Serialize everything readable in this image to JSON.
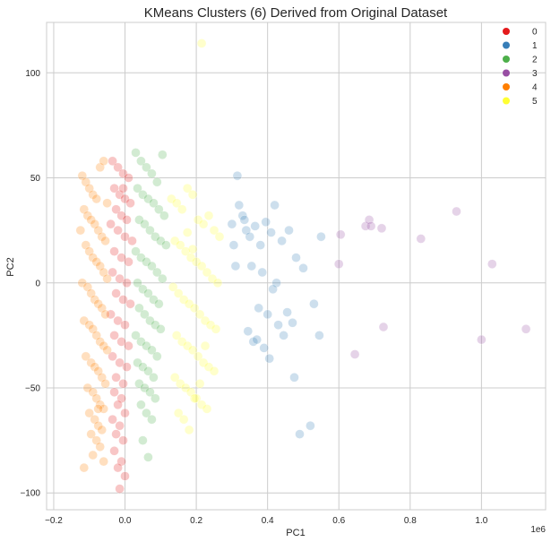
{
  "chart_data": {
    "type": "scatter",
    "title": "KMeans Clusters (6) Derived from Original Dataset",
    "xlabel": "PC1",
    "ylabel": "PC2",
    "x_scale_label": "1e6",
    "xlim": [
      -220000,
      1180000
    ],
    "ylim": [
      -108,
      124
    ],
    "x_ticks": [
      -200000,
      0,
      200000,
      400000,
      600000,
      800000,
      1000000
    ],
    "x_tick_labels": [
      "−0.2",
      "0.0",
      "0.2",
      "0.4",
      "0.6",
      "0.8",
      "1.0"
    ],
    "y_ticks": [
      -100,
      -50,
      0,
      50,
      100
    ],
    "y_tick_labels": [
      "−100",
      "−50",
      "0",
      "50",
      "100"
    ],
    "grid": true,
    "legend_position": "top-right",
    "series": [
      {
        "name": "0",
        "color": "#e41a1c",
        "x": [
          -35000,
          -20000,
          -5000,
          10000,
          -30000,
          -15000,
          0,
          15000,
          -25000,
          -10000,
          5000,
          -40000,
          -20000,
          0,
          20000,
          -30000,
          -10000,
          10000,
          -35000,
          -15000,
          5000,
          -25000,
          -5000,
          15000,
          -40000,
          -20000,
          0,
          -30000,
          -10000,
          10000,
          -35000,
          -15000,
          5000,
          -25000,
          -5000,
          -30000,
          -10000,
          -20000,
          0,
          -35000,
          -15000,
          -25000,
          -5000,
          -30000,
          -10000,
          -20000,
          0,
          -15000,
          -5000
        ],
        "y": [
          58,
          55,
          52,
          50,
          45,
          42,
          40,
          38,
          35,
          32,
          30,
          28,
          25,
          22,
          20,
          15,
          12,
          10,
          5,
          2,
          0,
          -5,
          -8,
          -10,
          -15,
          -18,
          -20,
          -25,
          -28,
          -30,
          -35,
          -38,
          -40,
          -45,
          -48,
          -52,
          -55,
          -58,
          -62,
          -65,
          -68,
          -72,
          -75,
          -80,
          -85,
          -88,
          -92,
          -98,
          45
        ]
      },
      {
        "name": "1",
        "color": "#377eb8",
        "x": [
          315000,
          320000,
          330000,
          340000,
          350000,
          365000,
          380000,
          395000,
          410000,
          420000,
          440000,
          460000,
          480000,
          500000,
          520000,
          550000,
          300000,
          310000,
          345000,
          360000,
          375000,
          390000,
          405000,
          425000,
          445000,
          470000,
          490000,
          530000,
          545000,
          305000,
          335000,
          355000,
          370000,
          385000,
          400000,
          415000,
          430000,
          455000,
          475000
        ],
        "y": [
          51,
          37,
          32,
          25,
          22,
          27,
          18,
          29,
          24,
          37,
          20,
          25,
          12,
          7,
          -68,
          22,
          28,
          8,
          -23,
          -28,
          -12,
          -31,
          -36,
          0,
          -25,
          -19,
          -72,
          -10,
          -25,
          18,
          30,
          8,
          -27,
          5,
          -15,
          -3,
          -20,
          -14,
          -45
        ]
      },
      {
        "name": "2",
        "color": "#4daf4a",
        "x": [
          30000,
          45000,
          60000,
          75000,
          90000,
          105000,
          35000,
          50000,
          65000,
          80000,
          95000,
          110000,
          40000,
          55000,
          70000,
          85000,
          100000,
          115000,
          30000,
          45000,
          60000,
          75000,
          90000,
          105000,
          35000,
          50000,
          65000,
          80000,
          95000,
          40000,
          55000,
          70000,
          85000,
          100000,
          30000,
          45000,
          60000,
          75000,
          90000,
          35000,
          50000,
          65000,
          80000,
          40000,
          55000,
          70000,
          85000,
          45000,
          60000,
          75000,
          50000,
          65000
        ],
        "y": [
          62,
          58,
          55,
          52,
          48,
          61,
          45,
          42,
          40,
          38,
          35,
          32,
          30,
          28,
          25,
          22,
          20,
          18,
          15,
          12,
          10,
          8,
          5,
          2,
          0,
          -3,
          -5,
          -8,
          -10,
          -12,
          -15,
          -18,
          -20,
          -22,
          -25,
          -28,
          -30,
          -32,
          -35,
          -38,
          -40,
          -42,
          -45,
          -48,
          -50,
          -52,
          -55,
          -58,
          -62,
          -65,
          -75,
          -83
        ]
      },
      {
        "name": "3",
        "color": "#984ea3",
        "x": [
          605000,
          675000,
          685000,
          690000,
          720000,
          830000,
          930000,
          1030000,
          600000,
          645000,
          725000,
          1000000,
          1125000
        ],
        "y": [
          23,
          27,
          30,
          27,
          26,
          21,
          34,
          9,
          9,
          -34,
          -21,
          -27,
          -22
        ]
      },
      {
        "name": "4",
        "color": "#ff7f00",
        "x": [
          -120000,
          -110000,
          -100000,
          -90000,
          -80000,
          -70000,
          -60000,
          -50000,
          -115000,
          -105000,
          -95000,
          -85000,
          -75000,
          -65000,
          -55000,
          -125000,
          -110000,
          -100000,
          -90000,
          -80000,
          -70000,
          -60000,
          -50000,
          -120000,
          -105000,
          -95000,
          -85000,
          -75000,
          -65000,
          -55000,
          -115000,
          -100000,
          -90000,
          -80000,
          -70000,
          -60000,
          -50000,
          -110000,
          -95000,
          -85000,
          -75000,
          -65000,
          -55000,
          -105000,
          -90000,
          -80000,
          -70000,
          -60000,
          -100000,
          -85000,
          -75000,
          -65000,
          -95000,
          -80000,
          -70000,
          -115000,
          -90000,
          -75000,
          -60000
        ],
        "y": [
          51,
          48,
          45,
          42,
          40,
          55,
          58,
          38,
          35,
          32,
          30,
          28,
          25,
          22,
          20,
          25,
          18,
          15,
          12,
          10,
          8,
          5,
          2,
          0,
          -2,
          -5,
          -8,
          -10,
          -12,
          -15,
          -18,
          -20,
          -22,
          -25,
          -28,
          -30,
          -32,
          -35,
          -38,
          -40,
          -42,
          -45,
          -48,
          -50,
          -52,
          -55,
          -58,
          -60,
          -62,
          -65,
          -68,
          -70,
          -72,
          -75,
          -78,
          -88,
          -82,
          -60,
          -85
        ]
      },
      {
        "name": "5",
        "color": "#ffff33",
        "x": [
          130000,
          145000,
          160000,
          175000,
          190000,
          205000,
          220000,
          235000,
          250000,
          265000,
          140000,
          155000,
          170000,
          185000,
          200000,
          215000,
          230000,
          245000,
          260000,
          135000,
          150000,
          165000,
          180000,
          195000,
          210000,
          225000,
          240000,
          255000,
          145000,
          160000,
          175000,
          190000,
          205000,
          220000,
          235000,
          250000,
          140000,
          155000,
          170000,
          185000,
          200000,
          215000,
          230000,
          150000,
          165000,
          180000,
          195000,
          210000,
          225000,
          175000,
          190000,
          215000
        ],
        "y": [
          40,
          38,
          35,
          45,
          42,
          30,
          28,
          32,
          25,
          22,
          20,
          18,
          15,
          12,
          10,
          8,
          5,
          2,
          0,
          -2,
          -5,
          -8,
          -10,
          -12,
          -15,
          -18,
          -20,
          -22,
          -25,
          -28,
          -30,
          -32,
          -35,
          -38,
          -40,
          -42,
          -45,
          -48,
          -50,
          -52,
          -55,
          -58,
          -60,
          -62,
          -65,
          -70,
          -55,
          -48,
          -30,
          24,
          16,
          114
        ]
      }
    ]
  }
}
